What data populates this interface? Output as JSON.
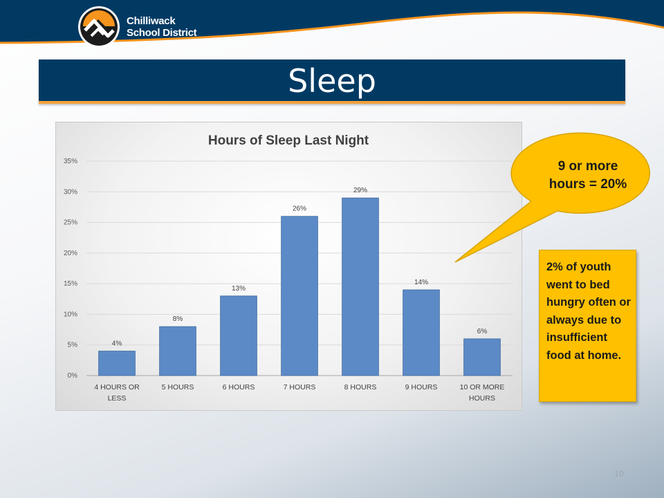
{
  "header": {
    "org_name_line1": "Chilliwack",
    "org_name_line2": "School District",
    "band_color": "#003a63",
    "accent_color": "#f7941d"
  },
  "slide": {
    "title": "Sleep",
    "page_number": "10"
  },
  "callout": {
    "text_line1": "9 or more",
    "text_line2": "hours = 20%",
    "color": "#ffc000"
  },
  "note": {
    "text": "2% of youth went to bed hungry often or always due to insufficient food at home.",
    "color": "#ffc000"
  },
  "chart_data": {
    "type": "bar",
    "title": "Hours of Sleep Last Night",
    "xlabel": "",
    "ylabel": "",
    "categories": [
      [
        "4 HOURS OR",
        "LESS"
      ],
      [
        "5 HOURS"
      ],
      [
        "6 HOURS"
      ],
      [
        "7 HOURS"
      ],
      [
        "8 HOURS"
      ],
      [
        "9 HOURS"
      ],
      [
        "10 OR MORE",
        "HOURS"
      ]
    ],
    "values": [
      4,
      8,
      13,
      26,
      29,
      14,
      6
    ],
    "data_labels": [
      "4%",
      "8%",
      "13%",
      "26%",
      "29%",
      "14%",
      "6%"
    ],
    "ylim": [
      0,
      35
    ],
    "yticks": [
      0,
      5,
      10,
      15,
      20,
      25,
      30,
      35
    ],
    "ytick_labels": [
      "0%",
      "5%",
      "10%",
      "15%",
      "20%",
      "25%",
      "30%",
      "35%"
    ],
    "grid": true,
    "legend": "none",
    "bar_color": "#5b8ac6"
  }
}
